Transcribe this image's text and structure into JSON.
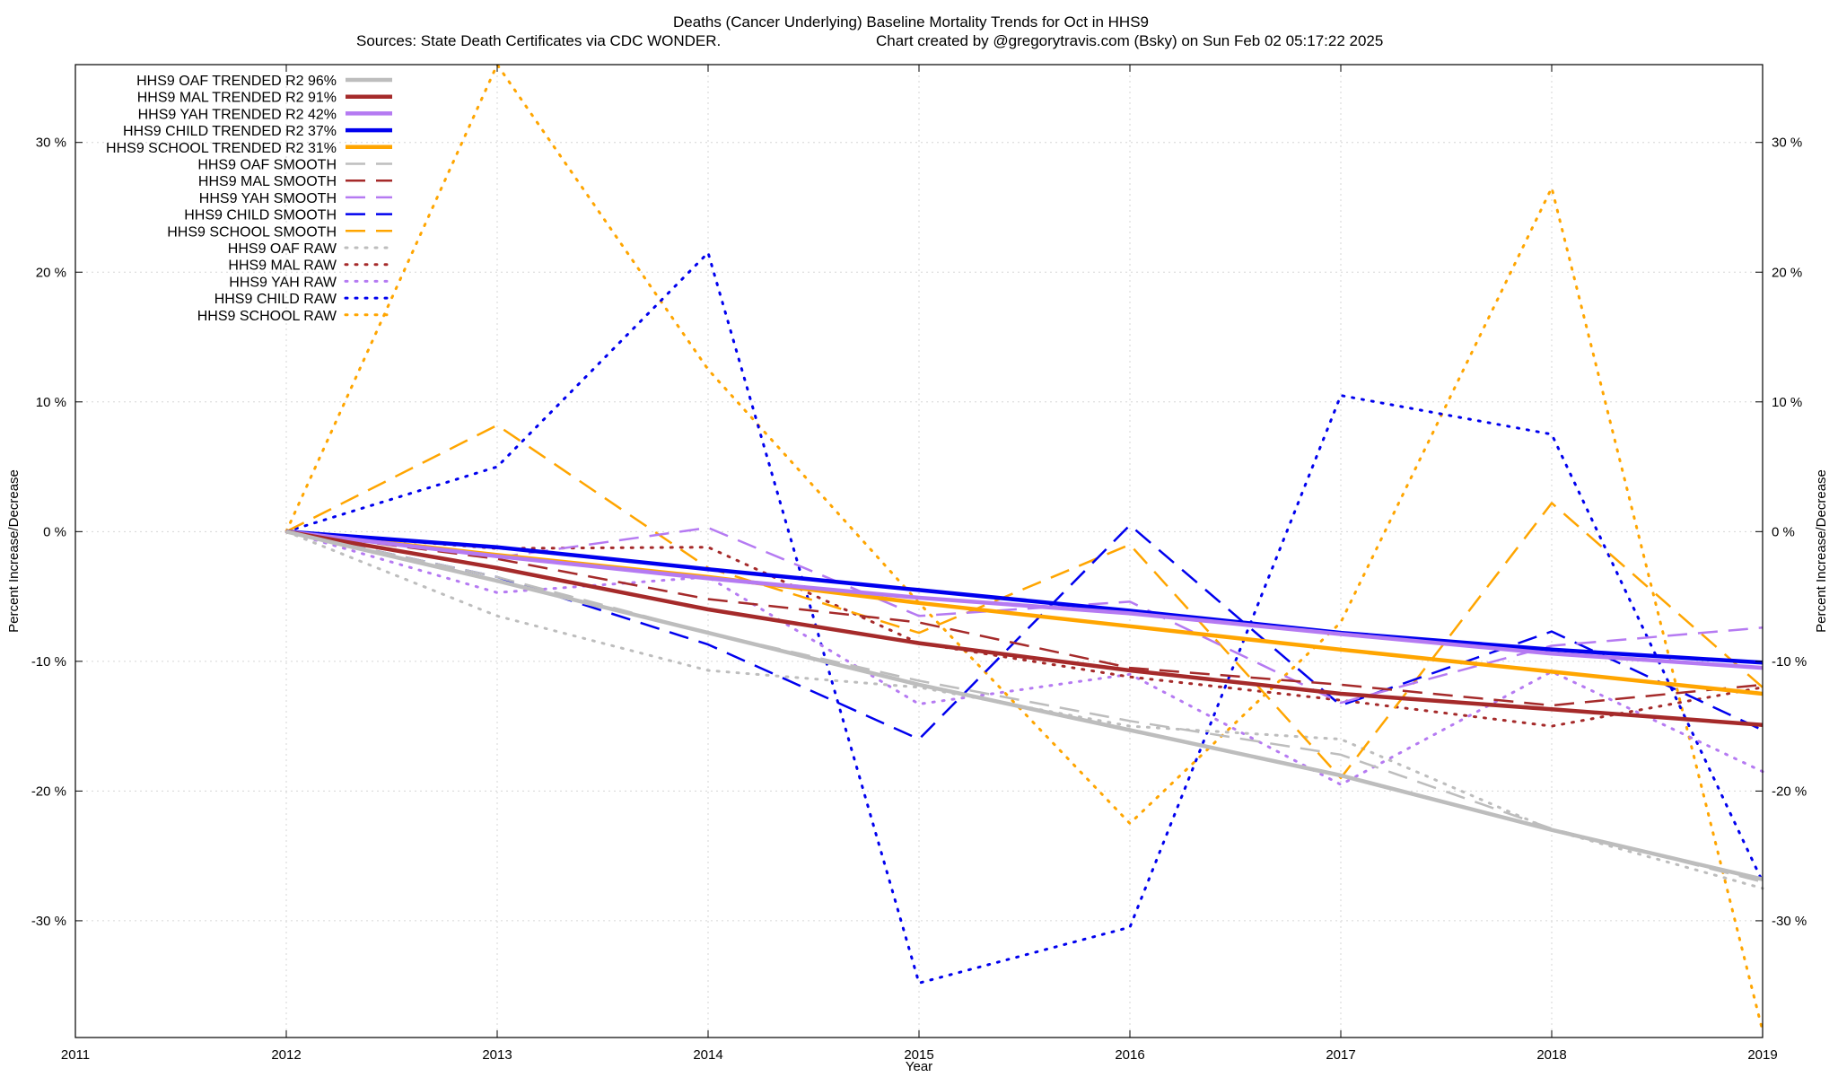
{
  "chart_data": {
    "type": "line",
    "title": "Deaths (Cancer Underlying)  Baseline Mortality Trends for Oct in HHS9",
    "subtitle_left": "Sources: State Death Certificates via CDC WONDER.",
    "subtitle_right": "Chart created by @gregorytravis.com (Bsky) on Sun Feb 02 05:17:22 2025",
    "xlabel": "Year",
    "ylabel": "Percent Increase/Decrease",
    "xlim": [
      2011,
      2019
    ],
    "ylim": [
      -39,
      36
    ],
    "x_ticks": [
      2011,
      2012,
      2013,
      2014,
      2015,
      2016,
      2017,
      2018,
      2019
    ],
    "x_tick_labels": [
      "2011",
      "2012",
      "2013",
      "2014",
      "2015",
      "2016",
      "2017",
      "2018",
      "2019"
    ],
    "y_ticks": [
      -30,
      -20,
      -10,
      0,
      10,
      20,
      30
    ],
    "y_tick_labels": [
      "-30 %",
      "-20 %",
      "-10 %",
      "0 %",
      "10 %",
      "20 %",
      "30 %"
    ],
    "grid": true,
    "legend_position": "top-left",
    "series": [
      {
        "name": "HHS9 OAF TRENDED R2  96%",
        "color": "#bdbdbd",
        "style": "solid",
        "width": 4.5,
        "x": [
          2012,
          2013,
          2014,
          2015,
          2016,
          2017,
          2018,
          2019
        ],
        "y": [
          0,
          -3.8,
          -7.8,
          -11.8,
          -15.3,
          -18.8,
          -23,
          -26.8
        ]
      },
      {
        "name": "HHS9 MAL TRENDED R2  91%",
        "color": "#a52a2a",
        "style": "solid",
        "width": 4.5,
        "x": [
          2012,
          2013,
          2014,
          2015,
          2016,
          2017,
          2018,
          2019
        ],
        "y": [
          0,
          -2.8,
          -6,
          -8.6,
          -10.7,
          -12.5,
          -13.7,
          -14.9
        ]
      },
      {
        "name": "HHS9 YAH TRENDED R2  42%",
        "color": "#b57af2",
        "style": "solid",
        "width": 4.5,
        "x": [
          2012,
          2013,
          2014,
          2015,
          2016,
          2017,
          2018,
          2019
        ],
        "y": [
          0,
          -1.9,
          -3.6,
          -5.1,
          -6.3,
          -7.9,
          -9.4,
          -10.5
        ]
      },
      {
        "name": "HHS9 CHILD TRENDED R2  37%",
        "color": "#0000ee",
        "style": "solid",
        "width": 4.5,
        "x": [
          2012,
          2013,
          2014,
          2015,
          2016,
          2017,
          2018,
          2019
        ],
        "y": [
          0,
          -1.2,
          -2.9,
          -4.5,
          -6.1,
          -7.8,
          -9.1,
          -10.1
        ]
      },
      {
        "name": "HHS9 SCHOOL TRENDED R2  31%",
        "color": "#ffa500",
        "style": "solid",
        "width": 4.5,
        "x": [
          2012,
          2013,
          2014,
          2015,
          2016,
          2017,
          2018,
          2019
        ],
        "y": [
          0,
          -1.8,
          -3.5,
          -5.5,
          -7.3,
          -9.1,
          -10.8,
          -12.5
        ]
      },
      {
        "name": "HHS9 OAF SMOOTH",
        "color": "#bdbdbd",
        "style": "dashed",
        "width": 2.5,
        "x": [
          2012,
          2013,
          2014,
          2015,
          2016,
          2017,
          2018,
          2019
        ],
        "y": [
          0,
          -3.5,
          -7.8,
          -11.5,
          -14.6,
          -17.2,
          -22.9,
          -27
        ]
      },
      {
        "name": "HHS9 MAL SMOOTH",
        "color": "#a52a2a",
        "style": "dashed",
        "width": 2.5,
        "x": [
          2012,
          2013,
          2014,
          2015,
          2016,
          2017,
          2018,
          2019
        ],
        "y": [
          0,
          -2.1,
          -5.2,
          -7,
          -10.5,
          -11.8,
          -13.4,
          -11.8
        ]
      },
      {
        "name": "HHS9 YAH SMOOTH",
        "color": "#b57af2",
        "style": "dashed",
        "width": 2.5,
        "x": [
          2012,
          2013,
          2014,
          2015,
          2016,
          2017,
          2018,
          2019
        ],
        "y": [
          0,
          -2,
          0.3,
          -6.5,
          -5.4,
          -13.2,
          -8.8,
          -7.4
        ]
      },
      {
        "name": "HHS9 CHILD SMOOTH",
        "color": "#0000ee",
        "style": "dashed",
        "width": 2.5,
        "x": [
          2012,
          2013,
          2014,
          2015,
          2016,
          2017,
          2018,
          2019
        ],
        "y": [
          0,
          -3.5,
          -8.7,
          -16,
          0.5,
          -13.4,
          -7.7,
          -15.3
        ]
      },
      {
        "name": "HHS9 SCHOOL SMOOTH",
        "color": "#ffa500",
        "style": "dashed",
        "width": 2.5,
        "x": [
          2012,
          2013,
          2014,
          2015,
          2016,
          2017,
          2018,
          2019
        ],
        "y": [
          0,
          8.2,
          -2.8,
          -7.8,
          -1,
          -19,
          2.2,
          -12
        ]
      },
      {
        "name": "HHS9 OAF RAW",
        "color": "#bdbdbd",
        "style": "dotted",
        "width": 3,
        "x": [
          2012,
          2013,
          2014,
          2015,
          2016,
          2017,
          2018,
          2019
        ],
        "y": [
          0,
          -6.5,
          -10.7,
          -12,
          -15,
          -16,
          -23,
          -27.5
        ]
      },
      {
        "name": "HHS9 MAL RAW",
        "color": "#a52a2a",
        "style": "dotted",
        "width": 3,
        "x": [
          2012,
          2013,
          2014,
          2015,
          2016,
          2017,
          2018,
          2019
        ],
        "y": [
          0,
          -1.3,
          -1.2,
          -8.6,
          -11.2,
          -13,
          -15,
          -12
        ]
      },
      {
        "name": "HHS9 YAH RAW",
        "color": "#b57af2",
        "style": "dotted",
        "width": 3,
        "x": [
          2012,
          2013,
          2014,
          2015,
          2016,
          2017,
          2018,
          2019
        ],
        "y": [
          0,
          -4.7,
          -3.5,
          -13.3,
          -11,
          -19.5,
          -10.8,
          -18.5
        ]
      },
      {
        "name": "HHS9 CHILD RAW",
        "color": "#0000ee",
        "style": "dotted",
        "width": 3,
        "x": [
          2012,
          2013,
          2014,
          2015,
          2016,
          2017,
          2018,
          2019
        ],
        "y": [
          0,
          5,
          21.5,
          -34.8,
          -30.5,
          10.5,
          7.5,
          -27
        ]
      },
      {
        "name": "HHS9 SCHOOL RAW",
        "color": "#ffa500",
        "style": "dotted",
        "width": 3,
        "x": [
          2012,
          2013,
          2014,
          2015,
          2016,
          2017,
          2018,
          2019
        ],
        "y": [
          0,
          36,
          12.5,
          -5.5,
          -22.5,
          -7,
          26.5,
          -38.5
        ]
      }
    ]
  }
}
